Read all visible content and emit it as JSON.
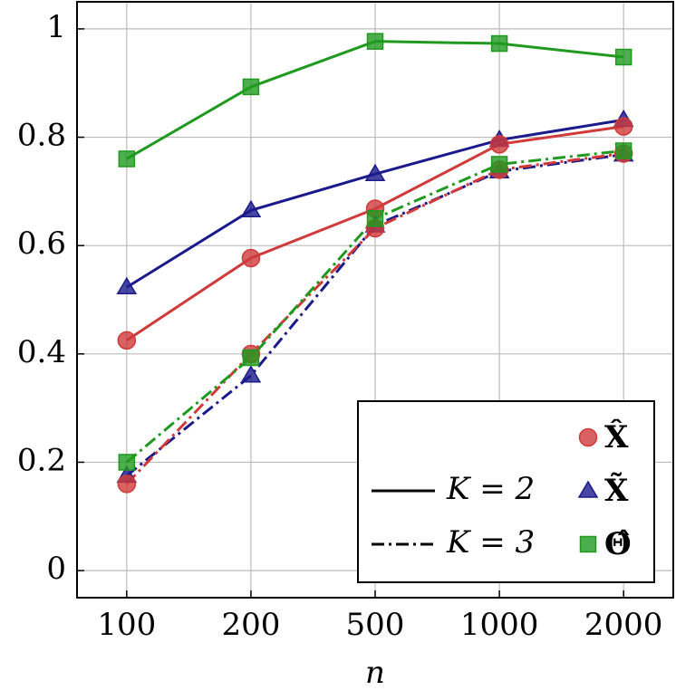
{
  "chart_data": {
    "type": "line",
    "xlabel": "n",
    "categories": [
      "100",
      "200",
      "500",
      "1000",
      "2000"
    ],
    "ylim": [
      -0.05,
      1.05
    ],
    "yticks": [
      0,
      0.2,
      0.4,
      0.6,
      0.8,
      1
    ],
    "grid": true,
    "legend_position": "lower right",
    "estimators": [
      {
        "label": "X̂",
        "color": "#d03a3a",
        "marker": "circle"
      },
      {
        "label": "X̃",
        "color": "#1a1a8c",
        "marker": "triangle"
      },
      {
        "label": "Θ̂",
        "color": "#1f9a1f",
        "marker": "square"
      }
    ],
    "styles": [
      {
        "label": "K = 2",
        "dash": "solid"
      },
      {
        "label": "K = 3",
        "dash": "dashdot"
      }
    ],
    "series": [
      {
        "estimator": 2,
        "style": 0,
        "values": [
          0.76,
          0.893,
          0.977,
          0.973,
          0.948
        ]
      },
      {
        "estimator": 1,
        "style": 0,
        "values": [
          0.523,
          0.665,
          0.732,
          0.795,
          0.832
        ]
      },
      {
        "estimator": 0,
        "style": 0,
        "values": [
          0.425,
          0.577,
          0.668,
          0.787,
          0.82
        ]
      },
      {
        "estimator": 1,
        "style": 1,
        "values": [
          0.175,
          0.36,
          0.637,
          0.737,
          0.768
        ]
      },
      {
        "estimator": 0,
        "style": 1,
        "values": [
          0.16,
          0.4,
          0.632,
          0.74,
          0.77
        ]
      },
      {
        "estimator": 2,
        "style": 1,
        "values": [
          0.2,
          0.393,
          0.65,
          0.75,
          0.775
        ]
      }
    ]
  }
}
